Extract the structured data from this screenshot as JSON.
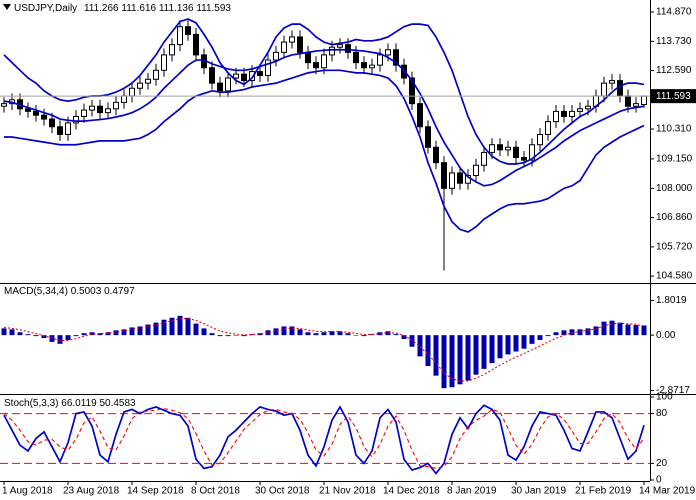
{
  "chart_data": [
    {
      "type": "candlestick",
      "title": "USDJPY,Daily",
      "color": "#000000",
      "open": [
        111.2,
        111.3,
        111.45,
        111.1,
        111.0,
        110.85,
        110.7,
        110.4,
        110.1,
        110.55,
        110.8,
        111.05,
        111.2,
        110.95,
        111.1,
        111.35,
        111.6,
        111.9,
        112.1,
        112.25,
        112.6,
        113.2,
        113.6,
        114.3,
        114.0,
        113.2,
        112.7,
        112.1,
        111.8,
        112.3,
        112.45,
        112.2,
        112.55,
        112.4,
        113.0,
        113.3,
        113.7,
        113.9,
        113.3,
        112.9,
        112.7,
        113.2,
        113.5,
        113.6,
        113.3,
        112.9,
        112.7,
        112.8,
        113.2,
        113.4,
        112.8,
        112.3,
        111.3,
        110.4,
        109.6,
        109.0,
        108.0,
        108.6,
        108.2,
        108.5,
        108.9,
        109.4,
        109.7,
        109.5,
        109.6,
        109.2,
        109.1,
        109.7,
        110.1,
        110.6,
        111.0,
        110.8,
        111.0,
        111.1,
        111.2,
        111.6,
        112.1,
        112.2,
        111.6,
        111.2,
        111.266
      ],
      "high": [
        111.55,
        111.7,
        111.7,
        111.35,
        111.25,
        111.1,
        110.95,
        110.65,
        110.8,
        111.05,
        111.3,
        111.45,
        111.45,
        111.35,
        111.6,
        111.85,
        112.15,
        112.35,
        112.5,
        112.85,
        113.45,
        113.85,
        114.55,
        114.55,
        114.25,
        113.45,
        112.95,
        112.35,
        112.55,
        112.7,
        112.7,
        112.8,
        112.8,
        113.25,
        113.55,
        113.95,
        114.15,
        114.15,
        113.55,
        113.15,
        113.45,
        113.75,
        113.85,
        113.85,
        113.55,
        113.15,
        113.05,
        113.45,
        113.65,
        113.65,
        113.05,
        112.55,
        111.55,
        110.65,
        109.85,
        109.25,
        108.85,
        108.85,
        108.75,
        109.15,
        109.65,
        109.95,
        109.95,
        109.85,
        109.85,
        109.45,
        109.95,
        110.35,
        110.85,
        111.25,
        111.25,
        111.25,
        111.35,
        111.45,
        111.85,
        112.35,
        112.45,
        112.45,
        111.85,
        111.55,
        111.616
      ],
      "low": [
        110.95,
        111.05,
        110.85,
        110.75,
        110.6,
        110.45,
        110.15,
        109.85,
        109.85,
        110.3,
        110.55,
        110.8,
        110.7,
        110.7,
        110.85,
        111.1,
        111.35,
        111.65,
        111.85,
        112.0,
        112.35,
        112.95,
        113.35,
        113.75,
        112.95,
        112.45,
        111.85,
        111.55,
        111.55,
        112.05,
        111.95,
        111.95,
        112.15,
        112.15,
        112.75,
        113.05,
        113.45,
        113.05,
        112.65,
        112.45,
        112.45,
        112.95,
        113.25,
        113.05,
        112.65,
        112.45,
        112.45,
        112.55,
        112.95,
        112.55,
        112.05,
        111.05,
        110.15,
        109.35,
        108.75,
        104.8,
        107.75,
        107.95,
        107.95,
        108.25,
        108.65,
        109.15,
        109.25,
        109.25,
        108.95,
        108.85,
        108.85,
        109.45,
        109.85,
        110.35,
        110.55,
        110.55,
        110.75,
        110.85,
        110.95,
        111.35,
        111.85,
        111.35,
        110.95,
        110.95,
        111.136
      ],
      "close": [
        111.3,
        111.45,
        111.1,
        111.0,
        110.85,
        110.7,
        110.4,
        110.1,
        110.55,
        110.8,
        111.05,
        111.2,
        110.95,
        111.1,
        111.35,
        111.6,
        111.9,
        112.1,
        112.25,
        112.6,
        113.2,
        113.6,
        114.3,
        114.0,
        113.2,
        112.7,
        112.1,
        111.8,
        112.3,
        112.45,
        112.2,
        112.55,
        112.4,
        113.0,
        113.3,
        113.7,
        113.9,
        113.3,
        112.9,
        112.7,
        113.2,
        113.5,
        113.6,
        113.3,
        112.9,
        112.7,
        112.8,
        113.2,
        113.4,
        112.8,
        112.3,
        111.3,
        110.4,
        109.6,
        109.0,
        108.0,
        108.6,
        108.2,
        108.5,
        108.9,
        109.4,
        109.7,
        109.5,
        109.6,
        109.2,
        109.1,
        109.7,
        110.1,
        110.6,
        111.0,
        110.8,
        111.0,
        111.1,
        111.2,
        111.6,
        112.1,
        112.2,
        111.6,
        111.2,
        111.3,
        111.593
      ],
      "series": [
        {
          "color": "#0000cc",
          "style": "solid",
          "values": [
            113.2,
            112.9,
            112.6,
            112.3,
            112.1,
            111.8,
            111.6,
            111.45,
            111.4,
            111.45,
            111.55,
            111.6,
            111.6,
            111.65,
            111.75,
            111.9,
            112.1,
            112.4,
            112.8,
            113.2,
            113.7,
            114.1,
            114.5,
            114.6,
            114.45,
            114.0,
            113.5,
            112.9,
            112.5,
            112.2,
            112.05,
            112.3,
            112.8,
            113.3,
            113.9,
            114.25,
            114.4,
            114.4,
            114.2,
            113.9,
            113.7,
            113.6,
            113.65,
            113.7,
            113.8,
            113.75,
            113.75,
            113.8,
            113.9,
            114.1,
            114.3,
            114.4,
            114.4,
            114.35,
            113.9,
            113.3,
            112.6,
            111.7,
            110.8,
            110.1,
            109.6,
            109.25,
            109.05,
            108.95,
            108.95,
            109.0,
            109.15,
            109.4,
            109.7,
            110.0,
            110.3,
            110.55,
            110.8,
            110.95,
            111.2,
            111.45,
            111.75,
            112.0,
            112.1,
            112.1,
            112.05
          ]
        },
        {
          "color": "#0000cc",
          "style": "solid",
          "values": [
            111.4,
            111.35,
            111.25,
            111.15,
            111.05,
            110.95,
            110.85,
            110.7,
            110.65,
            110.62,
            110.62,
            110.65,
            110.68,
            110.72,
            110.78,
            110.85,
            110.95,
            111.1,
            111.3,
            111.55,
            111.9,
            112.2,
            112.5,
            112.8,
            113.0,
            113.0,
            112.85,
            112.75,
            112.65,
            112.6,
            112.6,
            112.65,
            112.75,
            112.85,
            112.95,
            113.1,
            113.2,
            113.25,
            113.3,
            113.35,
            113.38,
            113.4,
            113.4,
            113.4,
            113.38,
            113.35,
            113.3,
            113.25,
            113.1,
            112.9,
            112.6,
            112.2,
            111.7,
            111.1,
            110.4,
            109.8,
            109.3,
            108.8,
            108.45,
            108.25,
            108.1,
            108.15,
            108.3,
            108.5,
            108.7,
            108.85,
            109.0,
            109.2,
            109.4,
            109.6,
            109.85,
            110.05,
            110.25,
            110.4,
            110.55,
            110.7,
            110.85,
            111.0,
            111.1,
            111.15,
            111.2
          ]
        },
        {
          "color": "#0000cc",
          "style": "solid",
          "values": [
            110.0,
            110.0,
            109.95,
            109.9,
            109.85,
            109.8,
            109.75,
            109.7,
            109.7,
            109.7,
            109.75,
            109.8,
            109.85,
            109.85,
            109.85,
            109.85,
            109.9,
            109.95,
            110.1,
            110.3,
            110.6,
            110.85,
            111.1,
            111.4,
            111.6,
            111.7,
            111.8,
            111.75,
            111.75,
            111.8,
            111.85,
            111.95,
            112.0,
            112.05,
            112.1,
            112.2,
            112.3,
            112.4,
            112.5,
            112.55,
            112.6,
            112.6,
            112.6,
            112.55,
            112.5,
            112.5,
            112.45,
            112.4,
            112.3,
            112.0,
            111.5,
            110.8,
            110.0,
            109.0,
            108.2,
            107.3,
            106.7,
            106.4,
            106.3,
            106.5,
            106.8,
            107.0,
            107.2,
            107.35,
            107.4,
            107.4,
            107.45,
            107.5,
            107.6,
            107.8,
            108.0,
            108.1,
            108.3,
            108.8,
            109.3,
            109.6,
            109.8,
            110.0,
            110.15,
            110.3,
            110.45
          ]
        }
      ],
      "ylim": [
        104.35,
        115.34
      ],
      "yticks": [
        {
          "value": 114.87,
          "label": "114.870"
        },
        {
          "value": 113.73,
          "label": "113.730"
        },
        {
          "value": 112.59,
          "label": "112.590"
        },
        {
          "value": 110.31,
          "label": "110.310"
        },
        {
          "value": 109.15,
          "label": "109.150"
        },
        {
          "value": 108.0,
          "label": "108.000"
        },
        {
          "value": 106.86,
          "label": "106.860"
        },
        {
          "value": 105.72,
          "label": "105.720"
        },
        {
          "value": 104.58,
          "label": "104.580"
        }
      ],
      "current_price_line": true,
      "price_line_color": "#a0a0a0"
    },
    {
      "type": "macd",
      "title": "MACD(5,34,4)",
      "series": [
        {
          "color": "#0000aa",
          "style": "histogram",
          "values": [
            0.35,
            0.3,
            0.15,
            0.05,
            -0.05,
            -0.15,
            -0.35,
            -0.45,
            -0.25,
            -0.05,
            0.1,
            0.15,
            0.1,
            0.15,
            0.25,
            0.3,
            0.4,
            0.45,
            0.55,
            0.65,
            0.8,
            0.9,
            1.0,
            0.9,
            0.6,
            0.35,
            0.1,
            -0.05,
            -0.05,
            0.0,
            -0.05,
            0.05,
            0.1,
            0.25,
            0.35,
            0.45,
            0.45,
            0.3,
            0.15,
            0.1,
            0.15,
            0.2,
            0.2,
            0.1,
            0.0,
            -0.05,
            0.05,
            0.15,
            0.2,
            0.05,
            -0.2,
            -0.6,
            -1.1,
            -1.6,
            -2.1,
            -2.75,
            -2.7,
            -2.55,
            -2.35,
            -2.05,
            -1.75,
            -1.45,
            -1.2,
            -1.0,
            -0.85,
            -0.7,
            -0.45,
            -0.25,
            -0.05,
            0.15,
            0.25,
            0.3,
            0.3,
            0.35,
            0.45,
            0.7,
            0.75,
            0.65,
            0.55,
            0.52,
            0.5003
          ]
        },
        {
          "color": "#ff0000",
          "style": "dotted",
          "values": [
            0.4,
            0.35,
            0.28,
            0.18,
            0.08,
            -0.03,
            -0.15,
            -0.28,
            -0.28,
            -0.18,
            -0.05,
            0.05,
            0.08,
            0.11,
            0.16,
            0.22,
            0.3,
            0.37,
            0.45,
            0.53,
            0.64,
            0.75,
            0.85,
            0.87,
            0.76,
            0.6,
            0.4,
            0.22,
            0.11,
            0.06,
            0.01,
            0.03,
            0.06,
            0.14,
            0.22,
            0.31,
            0.37,
            0.34,
            0.26,
            0.2,
            0.18,
            0.19,
            0.19,
            0.15,
            0.09,
            0.03,
            0.04,
            0.08,
            0.13,
            0.1,
            -0.02,
            -0.25,
            -0.59,
            -1.0,
            -1.44,
            -1.96,
            -2.26,
            -2.38,
            -2.37,
            -2.24,
            -2.04,
            -1.8,
            -1.56,
            -1.34,
            -1.14,
            -0.96,
            -0.76,
            -0.56,
            -0.36,
            -0.16,
            0.0,
            0.12,
            0.19,
            0.25,
            0.33,
            0.48,
            0.59,
            0.61,
            0.59,
            0.56,
            0.4797
          ]
        }
      ],
      "ylim": [
        -3.0,
        2.6
      ],
      "yticks": [
        1.8019,
        {
          "value": 0,
          "label": "0.00"
        },
        -2.8717
      ]
    },
    {
      "type": "stochastic",
      "title": "Stoch(5,3,3)",
      "categories": [
        "1 Aug 2018",
        null,
        null,
        null,
        null,
        null,
        null,
        null,
        "23 Aug 2018",
        null,
        null,
        null,
        null,
        null,
        null,
        null,
        "14 Sep 2018",
        null,
        null,
        null,
        null,
        null,
        null,
        null,
        "8 Oct 2018",
        null,
        null,
        null,
        null,
        null,
        null,
        null,
        "30 Oct 2018",
        null,
        null,
        null,
        null,
        null,
        null,
        null,
        "21 Nov 2018",
        null,
        null,
        null,
        null,
        null,
        null,
        null,
        "14 Dec 2018",
        null,
        null,
        null,
        null,
        null,
        null,
        null,
        "8 Jan 2019",
        null,
        null,
        null,
        null,
        null,
        null,
        null,
        "30 Jan 2019",
        null,
        null,
        null,
        null,
        null,
        null,
        null,
        "21 Feb 2019",
        null,
        null,
        null,
        null,
        null,
        null,
        null,
        "14 Mar 2019"
      ],
      "series": [
        {
          "color": "#0000cc",
          "style": "solid",
          "values": [
            78,
            60,
            42,
            35,
            50,
            58,
            40,
            22,
            45,
            80,
            82,
            65,
            30,
            22,
            55,
            82,
            85,
            80,
            85,
            88,
            84,
            80,
            78,
            65,
            25,
            14,
            16,
            30,
            52,
            60,
            70,
            80,
            88,
            85,
            83,
            78,
            80,
            60,
            30,
            17,
            40,
            72,
            88,
            70,
            30,
            20,
            35,
            75,
            85,
            70,
            25,
            12,
            15,
            20,
            8,
            20,
            55,
            75,
            62,
            80,
            90,
            85,
            72,
            30,
            24,
            40,
            65,
            82,
            80,
            78,
            60,
            38,
            35,
            58,
            82,
            82,
            75,
            50,
            25,
            35,
            66.0119
          ]
        },
        {
          "color": "#ff0000",
          "style": "dashed",
          "values": [
            80,
            72,
            60,
            46,
            42,
            48,
            49,
            40,
            36,
            49,
            69,
            76,
            59,
            39,
            36,
            53,
            74,
            82,
            83,
            84,
            86,
            84,
            81,
            74,
            56,
            35,
            18,
            20,
            33,
            47,
            61,
            70,
            79,
            84,
            85,
            82,
            80,
            73,
            57,
            36,
            29,
            43,
            67,
            77,
            63,
            40,
            28,
            43,
            65,
            77,
            60,
            36,
            17,
            16,
            14,
            16,
            28,
            50,
            64,
            72,
            77,
            85,
            82,
            62,
            42,
            31,
            43,
            62,
            76,
            80,
            73,
            59,
            44,
            44,
            58,
            74,
            80,
            69,
            50,
            37,
            50.4583
          ]
        }
      ],
      "ylim": [
        0,
        100
      ],
      "yticks": [
        100,
        80,
        20,
        0
      ],
      "levels": [
        80,
        20
      ],
      "level_color": "#ff0000"
    }
  ]
}
